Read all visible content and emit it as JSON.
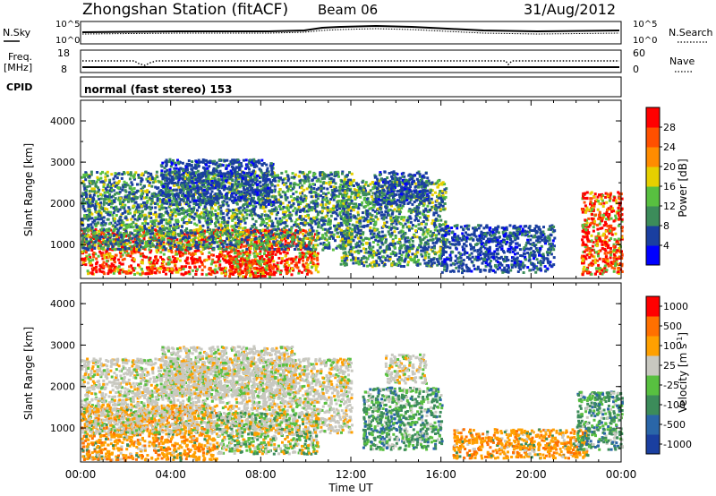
{
  "header": {
    "title": "Zhongshan Station (fitACF)",
    "beam": "Beam 06",
    "date": "31/Aug/2012"
  },
  "noise_panel": {
    "left_label": "N.Sky",
    "right_label": "N.Search",
    "left_ticks": [
      "10^5",
      "10^0"
    ],
    "right_ticks": [
      "10^5",
      "10^0"
    ]
  },
  "freq_panel": {
    "left_label_1": "Freq.",
    "left_label_2": "[MHz]",
    "right_label": "Nave",
    "left_ticks": [
      "18",
      "8"
    ],
    "right_ticks": [
      "60",
      "0"
    ]
  },
  "cpid": {
    "label": "CPID",
    "text": "normal (fast stereo) 153"
  },
  "colors": {
    "power_scale": [
      "#0000ff",
      "#1a3fa0",
      "#3c8c5a",
      "#58c040",
      "#e6d000",
      "#ff8c00",
      "#ff5000",
      "#ff0000"
    ],
    "velocity_scale": [
      "#1a3fa0",
      "#2a66a8",
      "#3c8c5a",
      "#58c040",
      "#c8c8c0",
      "#ffa000",
      "#ff7000",
      "#ff0000"
    ]
  },
  "chart_data": [
    {
      "type": "heatmap",
      "name": "power",
      "ylabel": "Slant Range [km]",
      "ylim": [
        180,
        4500
      ],
      "yticks": [
        "4000",
        "3000",
        "2000",
        "1000"
      ],
      "xlim_hours": [
        0,
        24
      ],
      "colorbar_label": "Power [dB]",
      "colorbar_ticks": [
        "28",
        "24",
        "20",
        "16",
        "12",
        "8",
        "4"
      ],
      "scatter_regions": [
        {
          "t0": 0.0,
          "t1": 10.5,
          "r0": 300,
          "r1": 1400,
          "level": "high"
        },
        {
          "t0": 0.0,
          "t1": 12.0,
          "r0": 900,
          "r1": 2800,
          "level": "mid"
        },
        {
          "t0": 3.5,
          "t1": 8.5,
          "r0": 2000,
          "r1": 3100,
          "level": "low"
        },
        {
          "t0": 6.3,
          "t1": 8.4,
          "r0": 250,
          "r1": 700,
          "level": "high"
        },
        {
          "t0": 11.5,
          "t1": 16.2,
          "r0": 500,
          "r1": 2600,
          "level": "mid"
        },
        {
          "t0": 13.0,
          "t1": 15.4,
          "r0": 2000,
          "r1": 2800,
          "level": "low"
        },
        {
          "t0": 16.0,
          "t1": 21.0,
          "r0": 350,
          "r1": 1500,
          "level": "low"
        },
        {
          "t0": 22.2,
          "t1": 24.0,
          "r0": 300,
          "r1": 2300,
          "level": "high"
        }
      ]
    },
    {
      "type": "heatmap",
      "name": "velocity",
      "ylabel": "Slant Range [km]",
      "xlabel": "Time UT",
      "ylim": [
        180,
        4500
      ],
      "yticks": [
        "4000",
        "3000",
        "2000",
        "1000"
      ],
      "xticks": [
        "00:00",
        "04:00",
        "08:00",
        "12:00",
        "16:00",
        "20:00",
        "00:00"
      ],
      "xlim_hours": [
        0,
        24
      ],
      "colorbar_label": "Velocity [m s",
      "colorbar_label_sup": "-1",
      "colorbar_label_end": "]",
      "colorbar_ticks": [
        "1000",
        "500",
        "100",
        "25",
        "-25",
        "-100",
        "-500",
        "-1000"
      ],
      "scatter_regions": [
        {
          "t0": 0.0,
          "t1": 6.0,
          "r0": 250,
          "r1": 1600,
          "level": "away"
        },
        {
          "t0": 0.0,
          "t1": 12.0,
          "r0": 900,
          "r1": 2700,
          "level": "zero"
        },
        {
          "t0": 3.5,
          "t1": 9.5,
          "r0": 1800,
          "r1": 3000,
          "level": "zero"
        },
        {
          "t0": 6.0,
          "t1": 10.5,
          "r0": 400,
          "r1": 1400,
          "level": "mixed"
        },
        {
          "t0": 12.5,
          "t1": 16.0,
          "r0": 500,
          "r1": 2000,
          "level": "toward"
        },
        {
          "t0": 13.5,
          "t1": 15.3,
          "r0": 2100,
          "r1": 2800,
          "level": "zero"
        },
        {
          "t0": 16.5,
          "t1": 22.5,
          "r0": 300,
          "r1": 1000,
          "level": "away"
        },
        {
          "t0": 22.0,
          "t1": 24.0,
          "r0": 500,
          "r1": 1900,
          "level": "toward"
        }
      ]
    }
  ]
}
